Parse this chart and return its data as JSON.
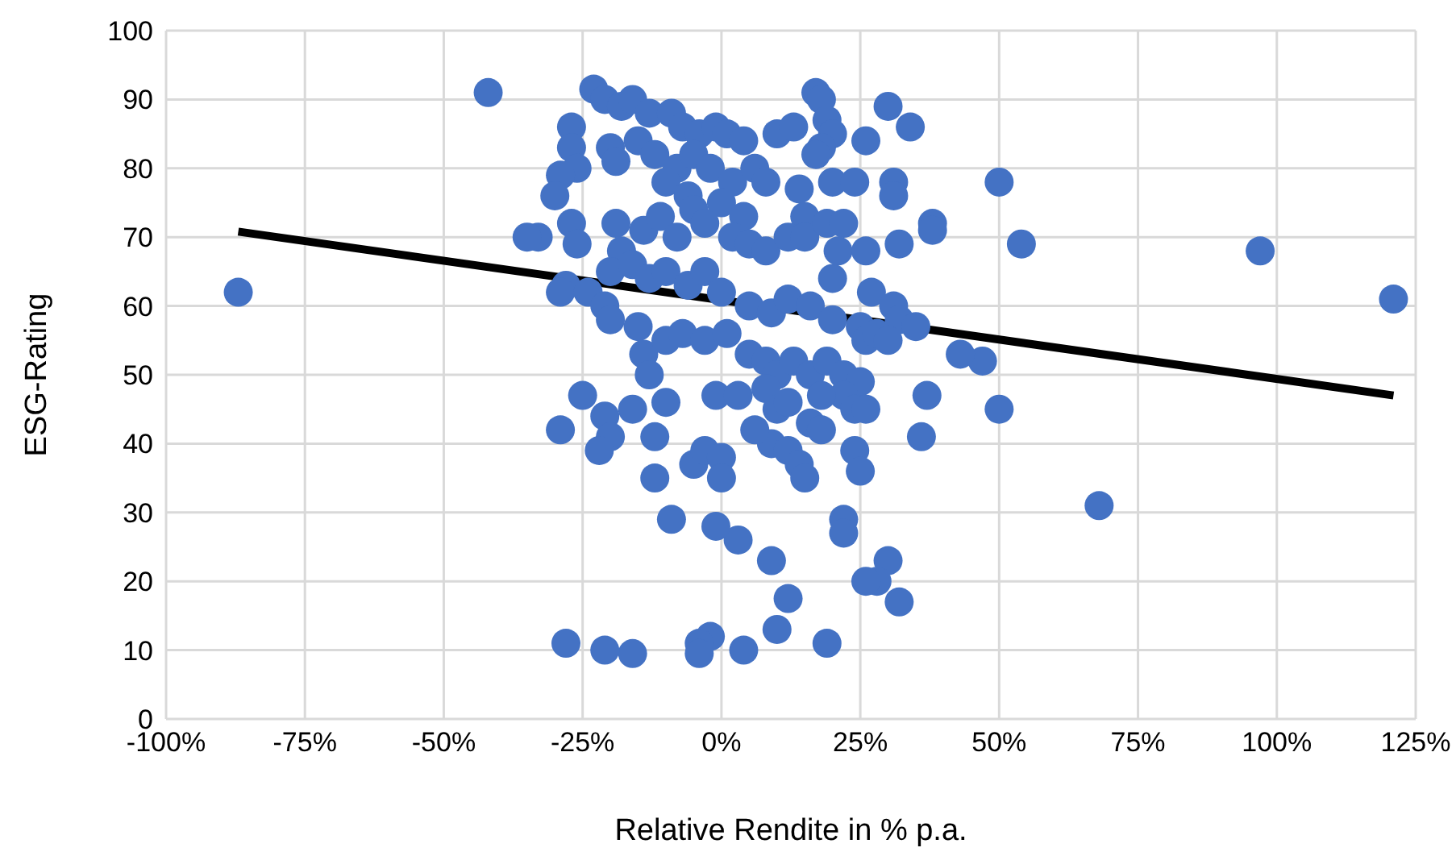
{
  "chart_data": {
    "type": "scatter",
    "xlabel": "Relative Rendite in % p.a.",
    "ylabel": "ESG-Rating",
    "xlim": [
      -100,
      125
    ],
    "xticks": [
      {
        "value": -100,
        "label": "-100%"
      },
      {
        "value": -75,
        "label": "-75%"
      },
      {
        "value": -50,
        "label": "-50%"
      },
      {
        "value": -25,
        "label": "-25%"
      },
      {
        "value": 0,
        "label": "0%"
      },
      {
        "value": 25,
        "label": "25%"
      },
      {
        "value": 50,
        "label": "50%"
      },
      {
        "value": 75,
        "label": "75%"
      },
      {
        "value": 100,
        "label": "100%"
      },
      {
        "value": 125,
        "label": "125%"
      }
    ],
    "ylim": [
      0,
      100
    ],
    "yticks": [
      0,
      10,
      20,
      30,
      40,
      50,
      60,
      70,
      80,
      90,
      100
    ],
    "grid": true,
    "series": [
      {
        "marker": "circle",
        "color": "#4472c4",
        "x": [
          -87,
          -42,
          121,
          97,
          68,
          50,
          54,
          50,
          47,
          43,
          38,
          38,
          37,
          36,
          32,
          30,
          28,
          26,
          22,
          22,
          19,
          12,
          10,
          9,
          3,
          -1,
          -9,
          -12,
          -2,
          -4,
          -4,
          4,
          -16,
          -21,
          -28,
          -23,
          -21,
          -18,
          -16,
          -13,
          -9,
          -7,
          -4,
          -1,
          1,
          4,
          10,
          13,
          17,
          18,
          19,
          20,
          18,
          17,
          26,
          30,
          34,
          -27,
          -27,
          -26,
          -29,
          -30,
          -20,
          -19,
          -15,
          -12,
          -8,
          -5,
          -2,
          2,
          6,
          8,
          -10,
          -6,
          0,
          4,
          14,
          15,
          20,
          24,
          31,
          31,
          -33,
          -35,
          -27,
          -26,
          -19,
          -18,
          -14,
          -11,
          -8,
          -5,
          -3,
          2,
          5,
          8,
          12,
          15,
          19,
          22,
          21,
          26,
          32,
          -28,
          -29,
          -24,
          -20,
          -16,
          -13,
          -10,
          -6,
          -3,
          0,
          5,
          9,
          12,
          16,
          20,
          20,
          25,
          27,
          31,
          32,
          35,
          -21,
          -20,
          -15,
          -14,
          -13,
          -10,
          -7,
          -3,
          1,
          5,
          8,
          10,
          13,
          16,
          19,
          22,
          25,
          26,
          28,
          30,
          -25,
          -21,
          -20,
          -22,
          -16,
          -12,
          -10,
          -29,
          -1,
          3,
          8,
          10,
          12,
          16,
          18,
          22,
          24,
          26,
          -5,
          -3,
          0,
          0,
          9,
          12,
          14,
          15,
          24,
          25,
          18,
          6
        ],
        "values": [
          62,
          91,
          61,
          68,
          31,
          78,
          69,
          45,
          52,
          53,
          72,
          71,
          47,
          41,
          17,
          23,
          20,
          20,
          29,
          27,
          11,
          17.5,
          13,
          23,
          26,
          28,
          29,
          35,
          12,
          11,
          9.5,
          10,
          9.5,
          10,
          11,
          91.5,
          90,
          89,
          90,
          88,
          88,
          86,
          85,
          86,
          85,
          84,
          85,
          86,
          91,
          90,
          87,
          85,
          83,
          82,
          84,
          89,
          86,
          86,
          83,
          80,
          79,
          76,
          83,
          81,
          84,
          82,
          80,
          82,
          80,
          78,
          80,
          78,
          78,
          76,
          75,
          73,
          77,
          73,
          78,
          78,
          78,
          76,
          70,
          70,
          72,
          69,
          72,
          68,
          71,
          73,
          70,
          74,
          72,
          70,
          69,
          68,
          70,
          70,
          72,
          72,
          68,
          68,
          69,
          63,
          62,
          62,
          65,
          66,
          64,
          65,
          63,
          65,
          62,
          60,
          59,
          61,
          60,
          58,
          64,
          57,
          62,
          60,
          58,
          57,
          60,
          58,
          57,
          53,
          50,
          55,
          56,
          55,
          56,
          53,
          52,
          50,
          52,
          50,
          52,
          50,
          49,
          55,
          56,
          55,
          47,
          44,
          41,
          39,
          45,
          41,
          46,
          42,
          47,
          47,
          48,
          45,
          46,
          43,
          42,
          47,
          45,
          45,
          37,
          39,
          38,
          35,
          40,
          39,
          37,
          35,
          39,
          36,
          47,
          42
        ]
      },
      {
        "type": "line",
        "marker": "none",
        "color": "#000000",
        "x": [
          -87,
          121
        ],
        "values": [
          70.8,
          47
        ]
      }
    ]
  }
}
